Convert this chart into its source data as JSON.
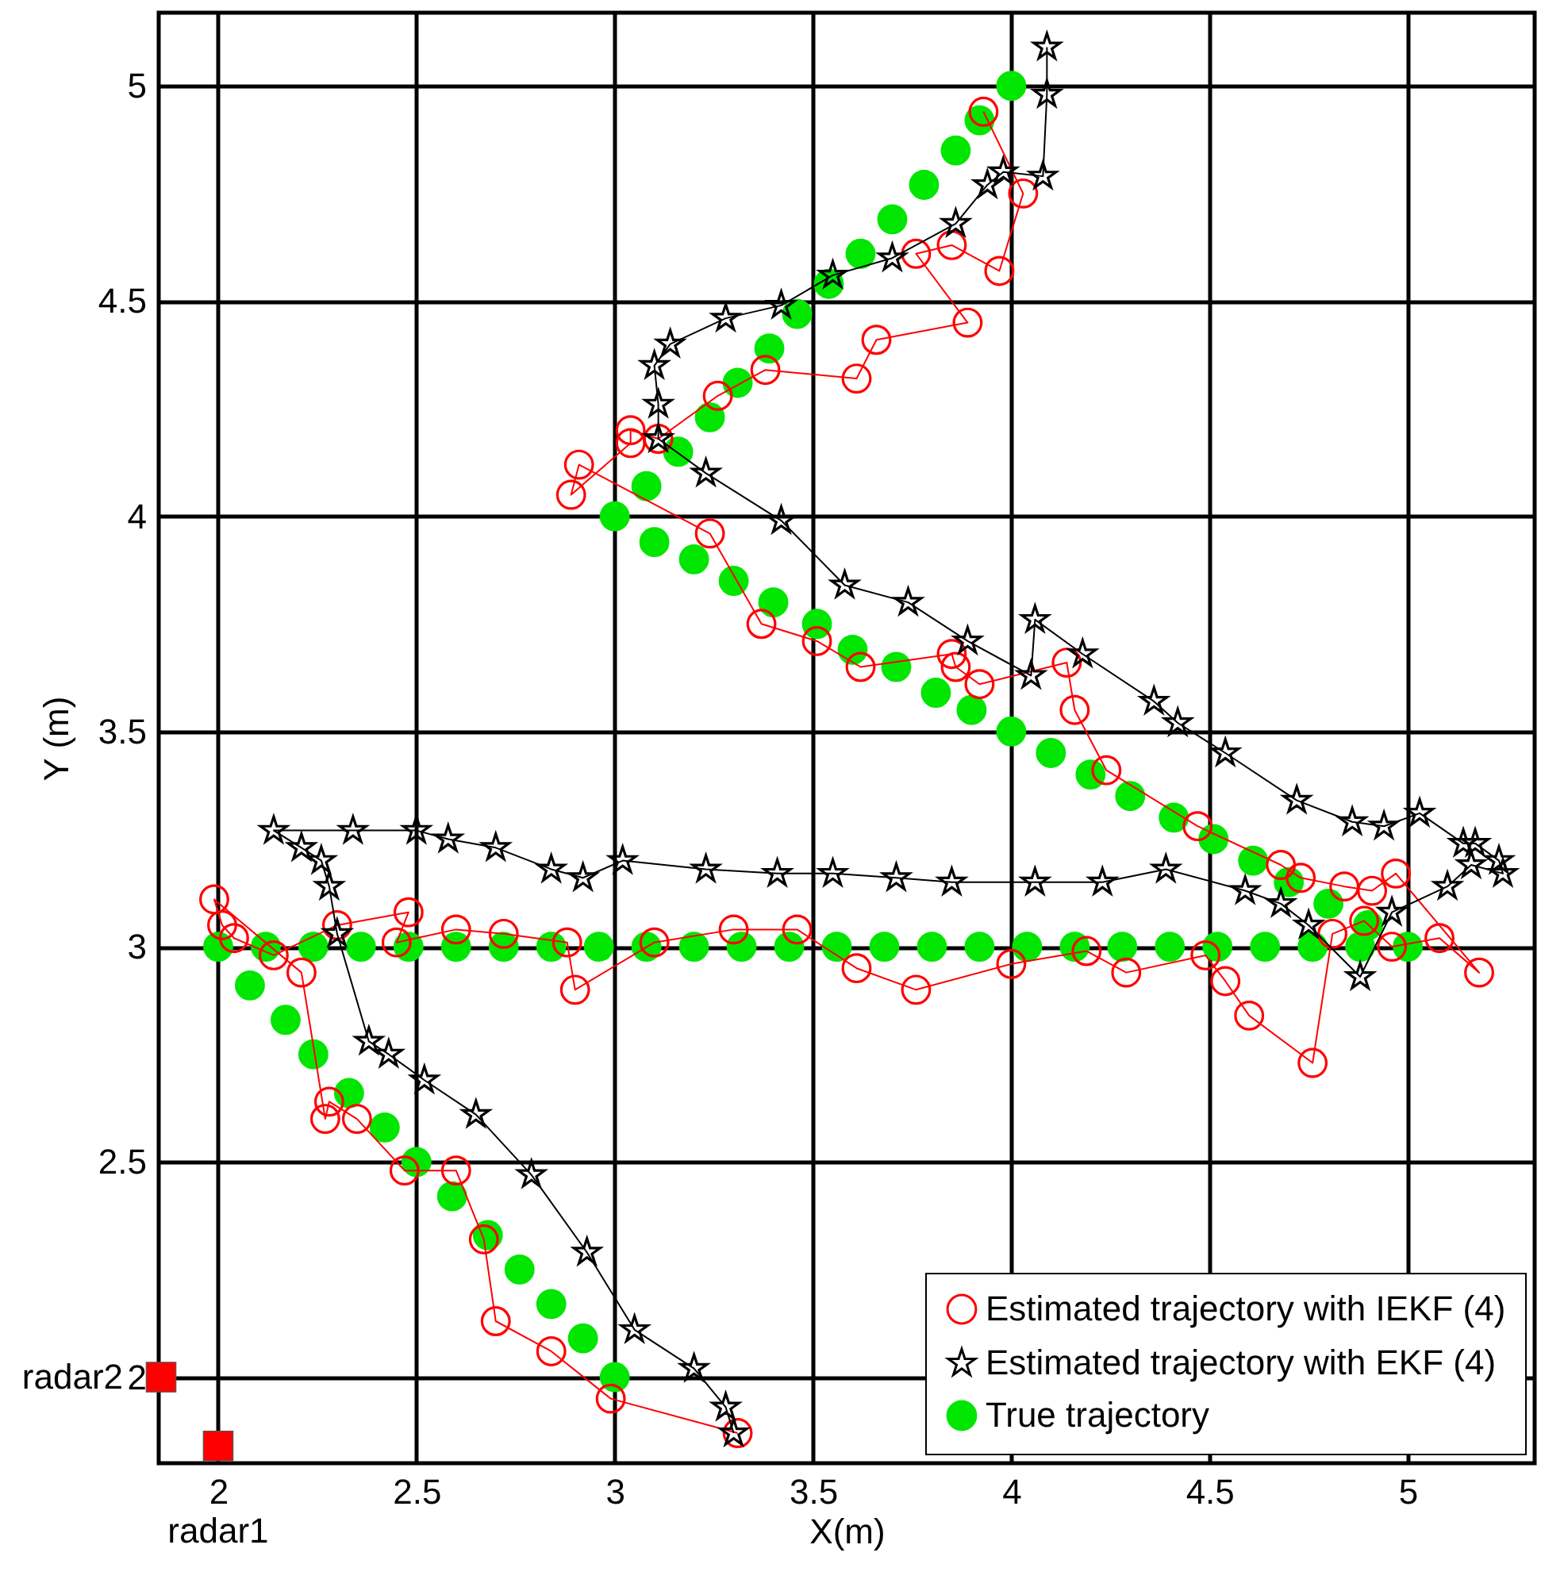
{
  "chart_data": {
    "type": "line",
    "xlabel": "X(m)",
    "ylabel": "Y (m)",
    "xlim": [
      1.85,
      5.32
    ],
    "ylim": [
      1.8,
      5.17
    ],
    "xticks": [
      2,
      2.5,
      3,
      3.5,
      4,
      4.5,
      5
    ],
    "yticks": [
      2,
      2.5,
      3,
      3.5,
      4,
      4.5,
      5
    ],
    "grid": true,
    "legend": "bottom right",
    "annotations": [
      {
        "text": "radar2",
        "x": 1.856,
        "y": 2.0
      },
      {
        "text": "radar1",
        "x": 2.0,
        "y": 1.84
      }
    ],
    "series": [
      {
        "name": "Estimated trajectory with IEKF (4)",
        "marker": "circle",
        "color": "#ff0000",
        "x": [
          3.93,
          4.03,
          3.97,
          3.85,
          3.76,
          3.89,
          3.66,
          3.61,
          3.38,
          3.26,
          3.11,
          3.04,
          3.04,
          2.89,
          2.91,
          3.24,
          3.37,
          3.51,
          3.62,
          3.85,
          3.86,
          3.92,
          4.14,
          4.16,
          4.24,
          4.47,
          4.68,
          4.73,
          4.84,
          4.91,
          4.97,
          5.18,
          5.08,
          4.96,
          4.89,
          4.81,
          4.76,
          4.6,
          4.54,
          4.49,
          4.29,
          4.19,
          4.0,
          3.76,
          3.61,
          3.46,
          3.3,
          3.1,
          2.9,
          2.88,
          2.72,
          2.6,
          2.45,
          2.48,
          2.3,
          2.14,
          2.04,
          2.01,
          1.99,
          2.21,
          2.27,
          2.28,
          2.35,
          2.47,
          2.6,
          2.67,
          2.7,
          2.84,
          2.99,
          3.31
        ],
        "values": [
          4.94,
          4.75,
          4.57,
          4.63,
          4.61,
          4.45,
          4.41,
          4.32,
          4.34,
          4.28,
          4.18,
          4.2,
          4.17,
          4.05,
          4.12,
          3.96,
          3.75,
          3.71,
          3.65,
          3.68,
          3.65,
          3.61,
          3.66,
          3.55,
          3.41,
          3.28,
          3.19,
          3.16,
          3.14,
          3.13,
          3.17,
          2.94,
          3.02,
          3.0,
          3.06,
          3.03,
          2.73,
          2.84,
          2.92,
          2.98,
          2.94,
          2.99,
          2.96,
          2.9,
          2.95,
          3.04,
          3.04,
          3.01,
          2.9,
          3.01,
          3.03,
          3.04,
          3.01,
          3.08,
          3.05,
          2.98,
          3.02,
          3.05,
          3.11,
          2.94,
          2.6,
          2.64,
          2.6,
          2.48,
          2.48,
          2.32,
          2.13,
          2.06,
          1.95,
          1.87
        ]
      },
      {
        "name": "Estimated trajectory with EKF (4)",
        "marker": "star",
        "color": "#000000",
        "x": [
          4.09,
          4.09,
          4.08,
          3.98,
          3.94,
          3.86,
          3.7,
          3.55,
          3.42,
          3.28,
          3.14,
          3.1,
          3.11,
          3.11,
          3.23,
          3.42,
          3.58,
          3.74,
          3.89,
          4.05,
          4.06,
          4.18,
          4.36,
          4.42,
          4.54,
          4.72,
          4.86,
          4.94,
          5.03,
          5.14,
          5.17,
          5.23,
          5.24,
          5.16,
          5.1,
          4.96,
          4.88,
          4.75,
          4.68,
          4.59,
          4.39,
          4.23,
          4.06,
          3.85,
          3.71,
          3.55,
          3.41,
          3.23,
          3.02,
          2.92,
          2.84,
          2.7,
          2.58,
          2.5,
          2.34,
          2.14,
          2.21,
          2.26,
          2.28,
          2.3,
          2.38,
          2.43,
          2.52,
          2.65,
          2.79,
          2.93,
          3.05,
          3.2,
          3.28,
          3.3
        ],
        "values": [
          5.09,
          4.98,
          4.79,
          4.8,
          4.77,
          4.68,
          4.6,
          4.56,
          4.49,
          4.46,
          4.4,
          4.35,
          4.26,
          4.18,
          4.1,
          3.99,
          3.84,
          3.8,
          3.71,
          3.63,
          3.76,
          3.68,
          3.57,
          3.52,
          3.45,
          3.34,
          3.29,
          3.28,
          3.31,
          3.24,
          3.24,
          3.2,
          3.17,
          3.19,
          3.14,
          3.08,
          2.93,
          3.05,
          3.1,
          3.13,
          3.18,
          3.15,
          3.15,
          3.15,
          3.16,
          3.17,
          3.17,
          3.18,
          3.2,
          3.16,
          3.18,
          3.23,
          3.25,
          3.27,
          3.27,
          3.27,
          3.23,
          3.2,
          3.14,
          3.03,
          2.78,
          2.75,
          2.69,
          2.61,
          2.47,
          2.29,
          2.11,
          2.02,
          1.93,
          1.87
        ]
      },
      {
        "name": "True trajectory",
        "type": "scatter",
        "marker": "circle",
        "color": "#00e600",
        "x": [
          2.0,
          2.12,
          2.24,
          2.36,
          2.48,
          2.6,
          2.72,
          2.84,
          2.96,
          3.08,
          3.2,
          3.32,
          3.44,
          3.56,
          3.68,
          3.8,
          3.92,
          4.04,
          4.16,
          4.28,
          4.4,
          4.52,
          4.64,
          4.76,
          4.88,
          5.0,
          2.08,
          2.17,
          2.24,
          2.33,
          2.42,
          2.5,
          2.59,
          2.68,
          2.76,
          2.84,
          2.92,
          3.0,
          4.9,
          4.8,
          4.7,
          4.61,
          4.51,
          4.41,
          4.3,
          4.2,
          4.1,
          4.0,
          3.9,
          3.81,
          3.71,
          3.6,
          3.51,
          3.4,
          3.3,
          3.2,
          3.1,
          3.0,
          3.08,
          3.16,
          3.24,
          3.31,
          3.39,
          3.46,
          3.54,
          3.62,
          3.7,
          3.78,
          3.86,
          3.92,
          4.0
        ],
        "values": [
          3,
          3,
          3,
          3,
          3,
          3,
          3,
          3,
          3,
          3,
          3,
          3,
          3,
          3,
          3,
          3,
          3,
          3,
          3,
          3,
          3,
          3,
          3,
          3,
          3,
          3,
          2.91,
          2.83,
          2.75,
          2.66,
          2.58,
          2.5,
          2.42,
          2.33,
          2.25,
          2.17,
          2.09,
          2.0,
          3.05,
          3.1,
          3.15,
          3.2,
          3.25,
          3.3,
          3.35,
          3.4,
          3.45,
          3.5,
          3.55,
          3.59,
          3.65,
          3.69,
          3.75,
          3.8,
          3.85,
          3.9,
          3.94,
          4.0,
          4.07,
          4.15,
          4.23,
          4.31,
          4.39,
          4.47,
          4.54,
          4.61,
          4.69,
          4.77,
          4.85,
          4.92,
          5.0
        ]
      },
      {
        "type": "scatter",
        "marker": "square",
        "color": "#ff0000",
        "x": [
          2.0,
          1.856
        ],
        "values": [
          1.84,
          2.0
        ]
      }
    ]
  }
}
